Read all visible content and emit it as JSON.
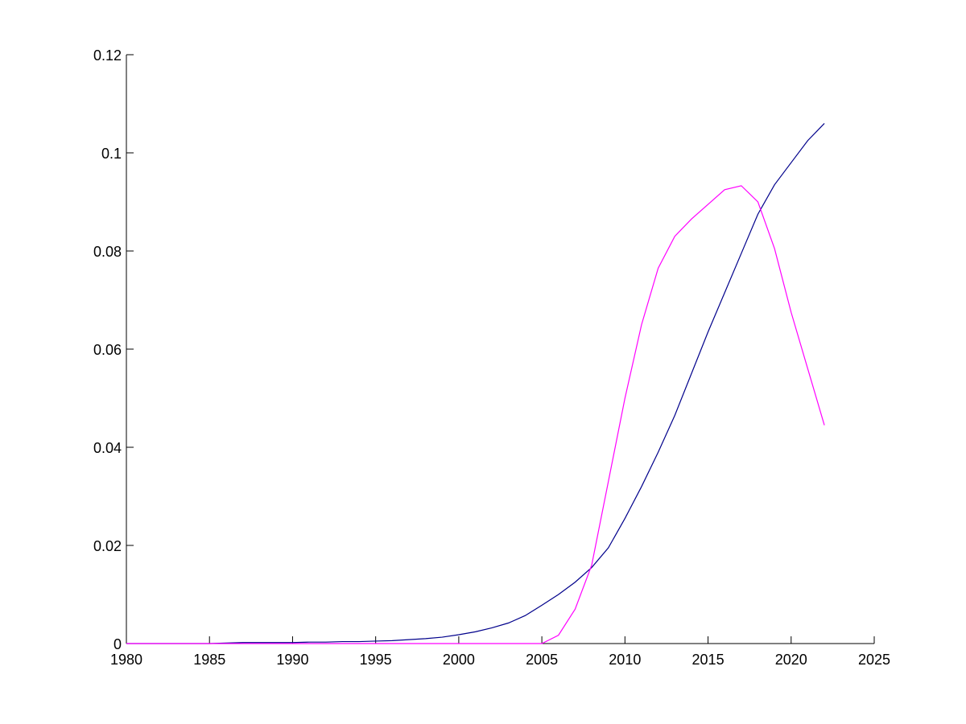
{
  "chart_data": {
    "type": "line",
    "x": [
      1980,
      1981,
      1982,
      1983,
      1984,
      1985,
      1986,
      1987,
      1988,
      1989,
      1990,
      1991,
      1992,
      1993,
      1994,
      1995,
      1996,
      1997,
      1998,
      1999,
      2000,
      2001,
      2002,
      2003,
      2004,
      2005,
      2006,
      2007,
      2008,
      2009,
      2010,
      2011,
      2012,
      2013,
      2014,
      2015,
      2016,
      2017,
      2018,
      2019,
      2020,
      2021,
      2022
    ],
    "series": [
      {
        "color": "#00008b",
        "values": [
          0,
          0,
          0,
          0,
          0,
          0,
          0.0001,
          0.0002,
          0.0002,
          0.0002,
          0.0002,
          0.0003,
          0.0003,
          0.0004,
          0.0004,
          0.0005,
          0.0006,
          0.0008,
          0.001,
          0.0013,
          0.0018,
          0.0024,
          0.0032,
          0.0042,
          0.0057,
          0.0078,
          0.01,
          0.0125,
          0.0155,
          0.0195,
          0.0255,
          0.032,
          0.039,
          0.0465,
          0.055,
          0.0635,
          0.0715,
          0.0795,
          0.0875,
          0.0935,
          0.098,
          0.1025,
          0.106
        ]
      },
      {
        "color": "#ff00ff",
        "values": [
          0,
          0,
          0,
          0,
          0,
          0,
          0,
          0,
          0,
          0,
          0,
          0,
          0,
          0,
          0,
          0,
          0,
          0,
          0,
          0,
          0,
          0,
          0,
          0,
          0,
          0,
          0.0017,
          0.007,
          0.016,
          0.033,
          0.05,
          0.065,
          0.0765,
          0.083,
          0.0865,
          0.0895,
          0.0925,
          0.0933,
          0.09,
          0.0805,
          0.0675,
          0.056,
          0.0445
        ]
      }
    ],
    "xlim": [
      1980,
      2025
    ],
    "xticks": [
      1980,
      1985,
      1990,
      1995,
      2000,
      2005,
      2010,
      2015,
      2020,
      2025
    ],
    "ylim": [
      0,
      0.12
    ],
    "yticks": [
      0,
      0.02,
      0.04,
      0.06,
      0.08,
      0.1,
      0.12
    ]
  }
}
